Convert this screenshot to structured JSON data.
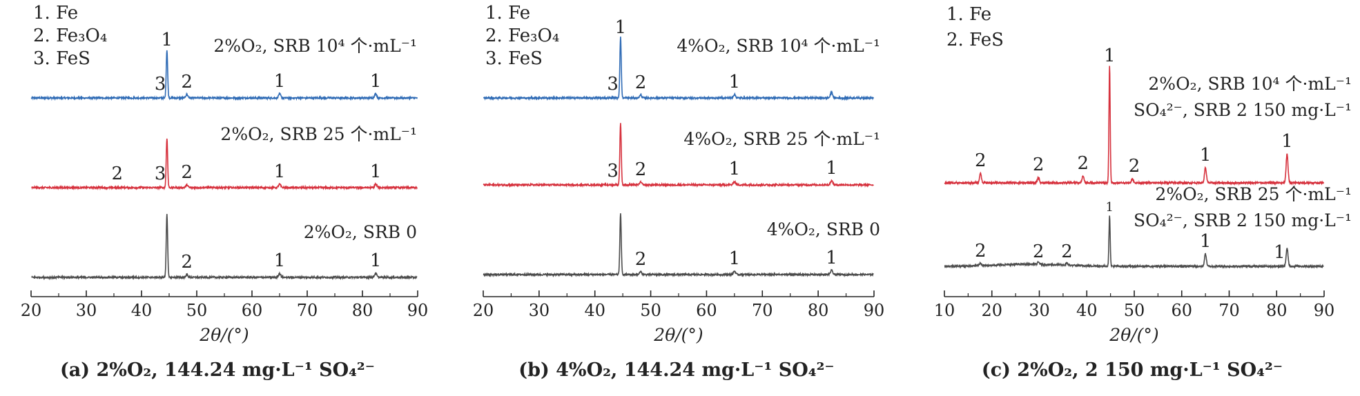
{
  "chart_data": [
    {
      "type": "line",
      "caption": "(a) 2%O₂, 144.24 mg·L⁻¹ SO₄²⁻",
      "xlabel": "2θ/(°)",
      "xlim": [
        20,
        90
      ],
      "xticks": [
        20,
        30,
        40,
        50,
        60,
        70,
        80,
        90
      ],
      "legend": [
        "1. Fe",
        "2. Fe₃O₄",
        "3. FeS"
      ],
      "series": [
        {
          "name": "2%O₂, SRB 10⁴ 个·mL⁻¹",
          "color": "#2f6bb5",
          "peaks": [
            {
              "x": 44.6,
              "h": 70
            },
            {
              "x": 48.2,
              "h": 5
            },
            {
              "x": 65.0,
              "h": 6
            },
            {
              "x": 82.4,
              "h": 6
            }
          ],
          "markers": [
            {
              "x": 43.4,
              "t": "3"
            },
            {
              "x": 44.6,
              "t": "1"
            },
            {
              "x": 48.2,
              "t": "2"
            },
            {
              "x": 65.0,
              "t": "1"
            },
            {
              "x": 82.4,
              "t": "1"
            }
          ]
        },
        {
          "name": "2%O₂, SRB 25 个·mL⁻¹",
          "color": "#d6303c",
          "peaks": [
            {
              "x": 44.6,
              "h": 72
            },
            {
              "x": 48.2,
              "h": 4
            },
            {
              "x": 65.0,
              "h": 5
            },
            {
              "x": 82.4,
              "h": 5
            }
          ],
          "markers": [
            {
              "x": 35.6,
              "t": "2"
            },
            {
              "x": 43.4,
              "t": "3"
            },
            {
              "x": 48.2,
              "t": "2"
            },
            {
              "x": 65.0,
              "t": "1"
            },
            {
              "x": 82.4,
              "t": "1"
            }
          ]
        },
        {
          "name": "2%O₂, SRB 0",
          "color": "#4a4a4a",
          "peaks": [
            {
              "x": 44.6,
              "h": 92
            },
            {
              "x": 48.2,
              "h": 4
            },
            {
              "x": 65.0,
              "h": 6
            },
            {
              "x": 82.4,
              "h": 6
            }
          ],
          "markers": [
            {
              "x": 48.2,
              "t": "2"
            },
            {
              "x": 65.0,
              "t": "1"
            },
            {
              "x": 82.4,
              "t": "1"
            }
          ]
        }
      ]
    },
    {
      "type": "line",
      "caption": "(b) 4%O₂, 144.24 mg·L⁻¹ SO₄²⁻",
      "xlabel": "2θ/(°)",
      "xlim": [
        20,
        90
      ],
      "xticks": [
        20,
        30,
        40,
        50,
        60,
        70,
        80,
        90
      ],
      "legend": [
        "1. Fe",
        "2. Fe₃O₄",
        "3. FeS"
      ],
      "series": [
        {
          "name": "4%O₂, SRB 10⁴ 个·mL⁻¹",
          "color": "#2f6bb5",
          "peaks": [
            {
              "x": 44.6,
              "h": 88
            },
            {
              "x": 48.2,
              "h": 4
            },
            {
              "x": 65.0,
              "h": 5
            },
            {
              "x": 82.4,
              "h": 8
            }
          ],
          "markers": [
            {
              "x": 43.2,
              "t": "3"
            },
            {
              "x": 44.6,
              "t": "1"
            },
            {
              "x": 48.2,
              "t": "2"
            },
            {
              "x": 65.0,
              "t": "1"
            }
          ]
        },
        {
          "name": "4%O₂, SRB 25 个·mL⁻¹",
          "color": "#d6303c",
          "peaks": [
            {
              "x": 44.6,
              "h": 90
            },
            {
              "x": 48.2,
              "h": 4
            },
            {
              "x": 65.0,
              "h": 5
            },
            {
              "x": 82.4,
              "h": 6
            }
          ],
          "markers": [
            {
              "x": 43.2,
              "t": "3"
            },
            {
              "x": 48.2,
              "t": "2"
            },
            {
              "x": 65.0,
              "t": "1"
            },
            {
              "x": 82.4,
              "t": "1"
            }
          ]
        },
        {
          "name": "4%O₂, SRB 0",
          "color": "#4a4a4a",
          "peaks": [
            {
              "x": 44.6,
              "h": 88
            },
            {
              "x": 48.2,
              "h": 4
            },
            {
              "x": 65.0,
              "h": 5
            },
            {
              "x": 82.4,
              "h": 6
            }
          ],
          "markers": [
            {
              "x": 48.2,
              "t": "2"
            },
            {
              "x": 65.0,
              "t": "1"
            },
            {
              "x": 82.4,
              "t": "1"
            }
          ]
        }
      ]
    },
    {
      "type": "line",
      "caption": "(c) 2%O₂, 2 150 mg·L⁻¹ SO₄²⁻",
      "xlabel": "2θ/(°)",
      "xlim": [
        10,
        90
      ],
      "xticks": [
        10,
        20,
        30,
        40,
        50,
        60,
        70,
        80,
        90
      ],
      "legend": [
        "1. Fe",
        "2. FeS"
      ],
      "series": [
        {
          "name": "2%O₂, SRB 10⁴ 个·mL⁻¹",
          "name2": "SO₄²⁻, SRB 2 150 mg·L⁻¹",
          "color": "#d6303c",
          "peaks": [
            {
              "x": 17.6,
              "h": 14
            },
            {
              "x": 29.8,
              "h": 8
            },
            {
              "x": 39.2,
              "h": 10
            },
            {
              "x": 44.8,
              "h": 170
            },
            {
              "x": 49.6,
              "h": 6
            },
            {
              "x": 65.0,
              "h": 22
            },
            {
              "x": 82.2,
              "h": 42
            }
          ],
          "markers": [
            {
              "x": 17.6,
              "t": "2"
            },
            {
              "x": 29.8,
              "t": "2"
            },
            {
              "x": 39.2,
              "t": "2"
            },
            {
              "x": 44.8,
              "t": "1"
            },
            {
              "x": 50.0,
              "t": "2"
            },
            {
              "x": 65.0,
              "t": "1"
            },
            {
              "x": 82.2,
              "t": "1"
            }
          ]
        },
        {
          "name": "2%O₂, SRB 25 个·mL⁻¹",
          "name2": "SO₄²⁻, SRB 2 150 mg·L⁻¹",
          "color": "#4a4a4a",
          "peaks": [
            {
              "x": 17.6,
              "h": 4
            },
            {
              "x": 29.8,
              "h": 3
            },
            {
              "x": 35.8,
              "h": 3
            },
            {
              "x": 44.8,
              "h": 74
            },
            {
              "x": 65.0,
              "h": 18
            },
            {
              "x": 82.2,
              "h": 26
            }
          ],
          "markers": [
            {
              "x": 17.6,
              "t": "2"
            },
            {
              "x": 29.8,
              "t": "2"
            },
            {
              "x": 35.8,
              "t": "2"
            },
            {
              "x": 44.8,
              "t": "1"
            },
            {
              "x": 65.0,
              "t": "1"
            },
            {
              "x": 80.6,
              "t": "1"
            }
          ]
        }
      ]
    }
  ]
}
